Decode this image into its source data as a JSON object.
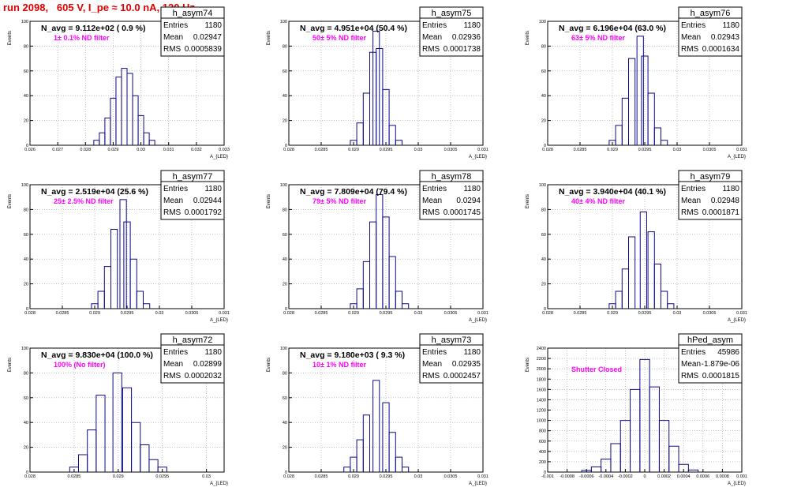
{
  "page": {
    "title": "run 2098,   605 V, I_pe ≈ 10.0 nA, 120 Hz"
  },
  "chart_data": [
    {
      "type": "bar",
      "name": "h_asym74",
      "navg": "N_avg = 9.112e+02 ( 0.9 %)",
      "note": "1± 0.1% ND filter",
      "entries": "1180",
      "mean": "0.02947",
      "rms": "0.0005839",
      "xlabel": "A_{LED}",
      "ylabel": "Events",
      "xlim": [
        0.026,
        0.033
      ],
      "ylim": [
        0,
        100
      ],
      "xticks": [
        "0.026",
        "0.027",
        "0.028",
        "0.029",
        "0.03",
        "0.031",
        "0.032",
        "0.033"
      ],
      "yticks": [
        "0",
        "20",
        "40",
        "60",
        "80",
        "100"
      ],
      "x": [
        0.0284,
        0.0286,
        0.0288,
        0.029,
        0.0292,
        0.0294,
        0.0296,
        0.0298,
        0.03,
        0.0302,
        0.0304
      ],
      "values": [
        4,
        10,
        22,
        38,
        55,
        62,
        58,
        40,
        24,
        10,
        4
      ]
    },
    {
      "type": "bar",
      "name": "h_asym75",
      "navg": "N_avg = 4.951e+04 (50.4 %)",
      "note": "50± 5% ND filter",
      "entries": "1180",
      "mean": "0.02936",
      "rms": "0.0001738",
      "xlabel": "A_{LED}",
      "ylabel": "Events",
      "xlim": [
        0.028,
        0.031
      ],
      "ylim": [
        0,
        100
      ],
      "xticks": [
        "0.028",
        "0.0285",
        "0.029",
        "0.0295",
        "0.03",
        "0.0305",
        "0.031"
      ],
      "yticks": [
        "0",
        "20",
        "40",
        "60",
        "80",
        "100"
      ],
      "x": [
        0.029,
        0.0291,
        0.0292,
        0.0293,
        0.02935,
        0.0294,
        0.0295,
        0.0296,
        0.0297
      ],
      "values": [
        4,
        18,
        42,
        75,
        92,
        78,
        45,
        16,
        4
      ]
    },
    {
      "type": "bar",
      "name": "h_asym76",
      "navg": "N_avg = 6.196e+04 (63.0 %)",
      "note": "63± 5% ND filter",
      "entries": "1180",
      "mean": "0.02943",
      "rms": "0.0001634",
      "xlabel": "A_{LED}",
      "ylabel": "Events",
      "xlim": [
        0.028,
        0.031
      ],
      "ylim": [
        0,
        100
      ],
      "xticks": [
        "0.028",
        "0.0285",
        "0.029",
        "0.0295",
        "0.03",
        "0.0305",
        "0.031"
      ],
      "yticks": [
        "0",
        "20",
        "40",
        "60",
        "80",
        "100"
      ],
      "x": [
        0.029,
        0.0291,
        0.0292,
        0.0293,
        0.02943,
        0.0295,
        0.0296,
        0.0297,
        0.0298
      ],
      "values": [
        4,
        16,
        38,
        70,
        88,
        72,
        42,
        14,
        4
      ]
    },
    {
      "type": "bar",
      "name": "h_asym77",
      "navg": "N_avg = 2.519e+04 (25.6 %)",
      "note": "25± 2.5% ND filter",
      "entries": "1180",
      "mean": "0.02944",
      "rms": "0.0001792",
      "xlabel": "A_{LED}",
      "ylabel": "Events",
      "xlim": [
        0.028,
        0.031
      ],
      "ylim": [
        0,
        100
      ],
      "xticks": [
        "0.028",
        "0.0285",
        "0.029",
        "0.0295",
        "0.03",
        "0.0305",
        "0.031"
      ],
      "yticks": [
        "0",
        "20",
        "40",
        "60",
        "80",
        "100"
      ],
      "x": [
        0.029,
        0.0291,
        0.0292,
        0.0293,
        0.02944,
        0.0295,
        0.0296,
        0.0297,
        0.0298
      ],
      "values": [
        4,
        14,
        34,
        64,
        88,
        70,
        40,
        14,
        4
      ]
    },
    {
      "type": "bar",
      "name": "h_asym78",
      "navg": "N_avg = 7.809e+04 (79.4 %)",
      "note": "79± 5% ND filter",
      "entries": "1180",
      "mean": "0.0294",
      "rms": "0.0001745",
      "xlabel": "A_{LED}",
      "ylabel": "Events",
      "xlim": [
        0.028,
        0.031
      ],
      "ylim": [
        0,
        100
      ],
      "xticks": [
        "0.028",
        "0.0285",
        "0.029",
        "0.0295",
        "0.03",
        "0.0305",
        "0.031"
      ],
      "yticks": [
        "0",
        "20",
        "40",
        "60",
        "80",
        "100"
      ],
      "x": [
        0.029,
        0.0291,
        0.0292,
        0.0293,
        0.0294,
        0.0295,
        0.0296,
        0.0297,
        0.0298
      ],
      "values": [
        4,
        16,
        38,
        70,
        92,
        74,
        42,
        14,
        4
      ]
    },
    {
      "type": "bar",
      "name": "h_asym79",
      "navg": "N_avg = 3.940e+04 (40.1 %)",
      "note": "40± 4% ND filter",
      "entries": "1180",
      "mean": "0.02948",
      "rms": "0.0001871",
      "xlabel": "A_{LED}",
      "ylabel": "Events",
      "xlim": [
        0.028,
        0.031
      ],
      "ylim": [
        0,
        100
      ],
      "xticks": [
        "0.028",
        "0.0285",
        "0.029",
        "0.0295",
        "0.03",
        "0.0305",
        "0.031"
      ],
      "yticks": [
        "0",
        "20",
        "40",
        "60",
        "80",
        "100"
      ],
      "x": [
        0.029,
        0.0291,
        0.0292,
        0.0293,
        0.02948,
        0.0296,
        0.0297,
        0.0298,
        0.0299
      ],
      "values": [
        4,
        14,
        32,
        58,
        78,
        62,
        36,
        14,
        4
      ]
    },
    {
      "type": "bar",
      "name": "h_asym72",
      "navg": "N_avg = 9.830e+04 (100.0 %)",
      "note": "100% (No filter)",
      "entries": "1180",
      "mean": "0.02899",
      "rms": "0.0002032",
      "xlabel": "A_{LED}",
      "ylabel": "Events",
      "xlim": [
        0.028,
        0.0302
      ],
      "ylim": [
        0,
        100
      ],
      "xticks": [
        "0.028",
        "0.0285",
        "0.029",
        "0.0295",
        "0.03"
      ],
      "yticks": [
        "0",
        "20",
        "40",
        "60",
        "80",
        "100"
      ],
      "x": [
        0.0285,
        0.0286,
        0.0287,
        0.0288,
        0.02899,
        0.0291,
        0.0292,
        0.0293,
        0.0294,
        0.0295
      ],
      "values": [
        4,
        14,
        34,
        62,
        80,
        68,
        40,
        22,
        10,
        4
      ]
    },
    {
      "type": "bar",
      "name": "h_asym73",
      "navg": "N_avg = 9.180e+03 ( 9.3 %)",
      "note": "10± 1% ND filter",
      "entries": "1180",
      "mean": "0.02935",
      "rms": "0.0002457",
      "xlabel": "A_{LED}",
      "ylabel": "Events",
      "xlim": [
        0.028,
        0.031
      ],
      "ylim": [
        0,
        100
      ],
      "xticks": [
        "0.028",
        "0.0285",
        "0.029",
        "0.0295",
        "0.03",
        "0.0305",
        "0.031"
      ],
      "yticks": [
        "0",
        "20",
        "40",
        "60",
        "80",
        "100"
      ],
      "x": [
        0.0289,
        0.029,
        0.0291,
        0.0292,
        0.02935,
        0.0295,
        0.0296,
        0.0297,
        0.0298
      ],
      "values": [
        4,
        12,
        26,
        46,
        74,
        56,
        32,
        12,
        4
      ]
    },
    {
      "type": "bar",
      "name": "hPed_asym",
      "navg": "",
      "note": "Shutter Closed",
      "entries": "45986",
      "mean": "-1.879e-06",
      "rms": "0.0001815",
      "xlabel": "A_{LED}",
      "ylabel": "Events",
      "xlim": [
        -0.001,
        0.001
      ],
      "ylim": [
        0,
        2400
      ],
      "xticks": [
        "-0.001",
        "-0.0008",
        "-0.0006",
        "-0.0004",
        "-0.0002",
        "0",
        "0.0002",
        "0.0004",
        "0.0006",
        "0.0008",
        "0.001"
      ],
      "yticks": [
        "0",
        "200",
        "400",
        "600",
        "800",
        "1000",
        "1200",
        "1400",
        "1600",
        "1800",
        "2000",
        "2200",
        "2400"
      ],
      "x": [
        -0.0006,
        -0.0005,
        -0.0004,
        -0.0003,
        -0.0002,
        -0.0001,
        0.0,
        0.0001,
        0.0002,
        0.0003,
        0.0004,
        0.0005
      ],
      "values": [
        30,
        100,
        250,
        550,
        1000,
        1600,
        2180,
        1650,
        1000,
        500,
        150,
        40
      ]
    }
  ]
}
